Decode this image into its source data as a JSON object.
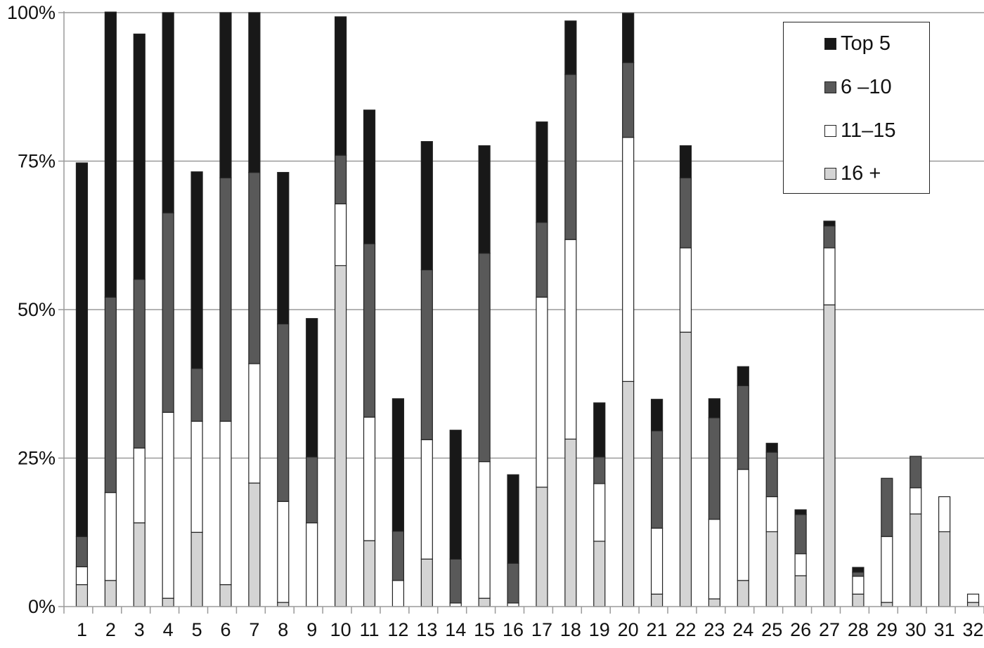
{
  "chart_data": {
    "type": "bar",
    "stacked": true,
    "title": "",
    "xlabel": "",
    "ylabel": "",
    "ylim": [
      0,
      100
    ],
    "yticks": [
      "0%",
      "25%",
      "50%",
      "75%",
      "100%"
    ],
    "grid": "horizontal",
    "legend_position": "top-right",
    "categories": [
      "1",
      "2",
      "3",
      "4",
      "5",
      "6",
      "7",
      "8",
      "9",
      "10",
      "11",
      "12",
      "13",
      "14",
      "15",
      "16",
      "17",
      "18",
      "19",
      "20",
      "21",
      "22",
      "23",
      "24",
      "25",
      "26",
      "27",
      "28",
      "29",
      "30",
      "31",
      "32"
    ],
    "series": [
      {
        "name": "16 +",
        "color": "#d4d4d4",
        "values": [
          3.7,
          4.4,
          14.1,
          1.4,
          12.5,
          3.7,
          20.8,
          0.7,
          0,
          57.4,
          11.1,
          0,
          8.0,
          0,
          1.4,
          0,
          20.1,
          28.2,
          11.0,
          37.9,
          2.1,
          46.2,
          1.3,
          4.4,
          12.6,
          5.2,
          50.8,
          2.1,
          0.7,
          15.6,
          12.6,
          0.7
        ]
      },
      {
        "name": "11–15",
        "color": "#ffffff",
        "values": [
          3.0,
          14.8,
          12.6,
          31.3,
          18.7,
          27.5,
          20.1,
          17.0,
          14.1,
          10.4,
          20.8,
          4.4,
          20.1,
          0.6,
          23.0,
          0.6,
          32.0,
          33.6,
          9.7,
          41.1,
          11.1,
          14.2,
          13.4,
          18.7,
          5.9,
          3.7,
          9.6,
          3.0,
          11.1,
          4.4,
          5.9,
          1.4
        ]
      },
      {
        "name": "6 –10",
        "color": "#595959",
        "values": [
          5.1,
          32.9,
          28.4,
          33.6,
          8.9,
          41.0,
          32.2,
          29.9,
          11.1,
          8.2,
          29.2,
          8.3,
          28.6,
          7.4,
          35.1,
          6.7,
          12.6,
          27.8,
          4.5,
          12.6,
          16.4,
          11.8,
          17.1,
          14.1,
          7.5,
          6.6,
          3.7,
          0.7,
          9.8,
          5.3,
          0,
          0
        ]
      },
      {
        "name": "Top 5",
        "color": "#181818",
        "values": [
          62.9,
          48.0,
          41.3,
          33.7,
          33.1,
          27.8,
          26.9,
          25.5,
          23.3,
          23.3,
          22.5,
          22.3,
          21.6,
          21.7,
          18.1,
          14.9,
          16.9,
          9.0,
          9.1,
          8.3,
          5.3,
          5.4,
          3.2,
          3.2,
          1.5,
          0.8,
          0.8,
          0.8,
          0,
          0,
          0,
          0
        ]
      }
    ]
  },
  "legend": {
    "items": [
      {
        "label": "Top 5",
        "color": "#181818"
      },
      {
        "label": "6 –10",
        "color": "#595959"
      },
      {
        "label": "11–15",
        "color": "#ffffff"
      },
      {
        "label": "16 +",
        "color": "#d4d4d4"
      }
    ]
  }
}
